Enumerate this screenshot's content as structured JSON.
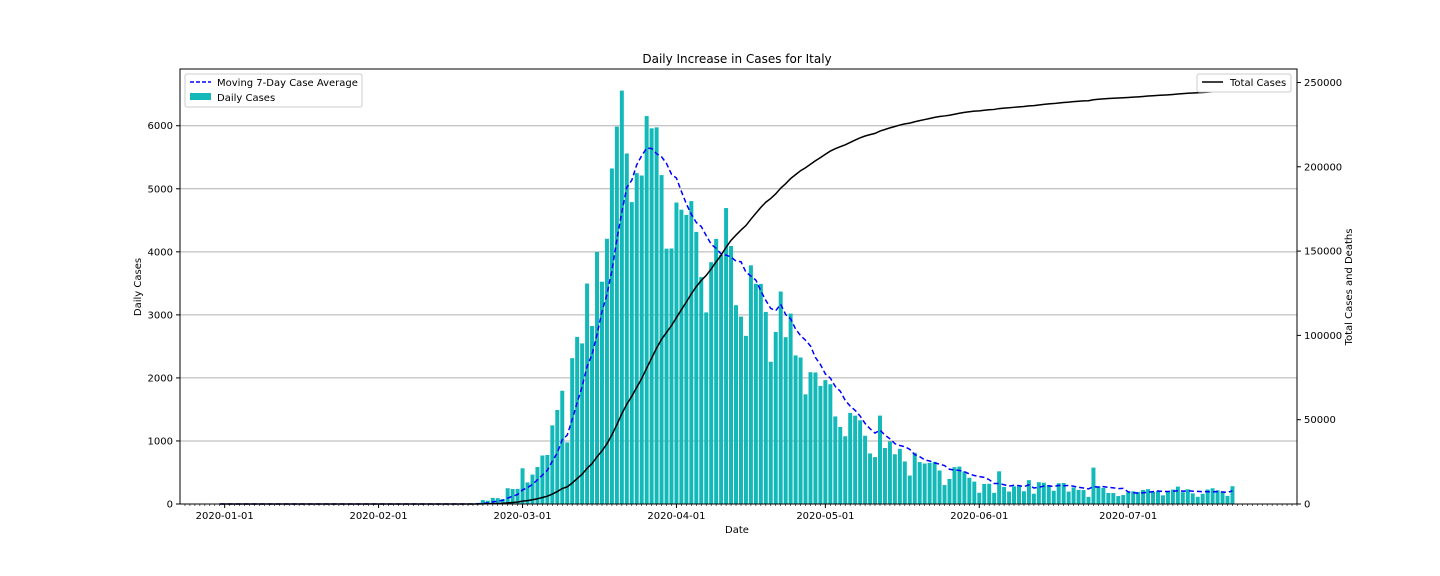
{
  "chart_data": {
    "type": "bar",
    "title": "Daily Increase in Cases for Italy",
    "xlabel": "Date",
    "ylabel": "Daily Cases",
    "y2label": "Total Cases and Deaths",
    "ylim": [
      0,
      6900
    ],
    "y2lim": [
      0,
      258000
    ],
    "yticks": [
      0,
      1000,
      2000,
      3000,
      4000,
      5000,
      6000
    ],
    "y2ticks": [
      0,
      50000,
      100000,
      150000,
      200000,
      250000
    ],
    "y2tick_labels": [
      "0",
      "50000",
      "100000",
      "150000",
      "200000",
      "250000"
    ],
    "x_range": [
      "2019-12-23",
      "2020-08-04"
    ],
    "date_start": "2019-12-31",
    "xtick_labels": [
      "2020-01-01",
      "2020-02-01",
      "2020-03-01",
      "2020-04-01",
      "2020-05-01",
      "2020-06-01",
      "2020-07-01"
    ],
    "grid": "horizontal",
    "legend_left": [
      "Moving 7-Day Case Average",
      "Daily Cases"
    ],
    "legend_right": [
      "Total Cases"
    ],
    "colors": {
      "bars": "#17becf",
      "bar_fill": "#13b8b8",
      "average": "#0000ff",
      "total": "#000000",
      "grid": "#b0b0b0"
    },
    "daily_cases": [
      0,
      0,
      0,
      0,
      0,
      0,
      0,
      0,
      0,
      0,
      0,
      0,
      0,
      0,
      0,
      0,
      0,
      0,
      0,
      0,
      0,
      0,
      0,
      0,
      0,
      0,
      0,
      0,
      0,
      0,
      0,
      3,
      0,
      0,
      0,
      0,
      0,
      0,
      0,
      0,
      0,
      0,
      0,
      0,
      0,
      0,
      0,
      0,
      0,
      0,
      0,
      0,
      0,
      0,
      0,
      0,
      0,
      0,
      0,
      0,
      0,
      0,
      0,
      0,
      0,
      0,
      0,
      0,
      0,
      0,
      0,
      0,
      0,
      0,
      0,
      0,
      0,
      0,
      0,
      0,
      0,
      0,
      0,
      0,
      0,
      0,
      0,
      0,
      0,
      0,
      0,
      0,
      0,
      0,
      0,
      0,
      0,
      0,
      0,
      0,
      0,
      0,
      0,
      0,
      0,
      0,
      0,
      0,
      0,
      0,
      0,
      0,
      0,
      0,
      0,
      0,
      0,
      0,
      0,
      0,
      0,
      0,
      0,
      0,
      0,
      0,
      0,
      0,
      0,
      0,
      0,
      0,
      0,
      0,
      0,
      0,
      0,
      0,
      0,
      0,
      0,
      0,
      0,
      0,
      0,
      0,
      0,
      0,
      0,
      0,
      0,
      0,
      0,
      0,
      0,
      0,
      0,
      0,
      0,
      0,
      0,
      0,
      0,
      0,
      0,
      0,
      0,
      0,
      0,
      0,
      0,
      0,
      0,
      0,
      0,
      0,
      0,
      0,
      0,
      0,
      0,
      0,
      0,
      0,
      0,
      0,
      0,
      0,
      0,
      0,
      0,
      0,
      0,
      0,
      0,
      0,
      0,
      0,
      0,
      0,
      0,
      0,
      0,
      0,
      0
    ],
    "daily_cases_from_2020_02_21": [
      17,
      62,
      53,
      97,
      93,
      78,
      250,
      238,
      240,
      566,
      342,
      466,
      587,
      769,
      778,
      1247,
      1492,
      1797,
      977,
      2313,
      2651,
      2547,
      3497,
      2823,
      4000,
      3526,
      4207,
      5322,
      5986,
      6557,
      5560,
      4789,
      5249,
      5210,
      6153,
      5959,
      5974,
      5217,
      4050,
      4053,
      4782,
      4668,
      4585,
      4805,
      4316,
      3599,
      3039,
      3836,
      4204,
      3951,
      4694,
      4092,
      3153,
      2972,
      2667,
      3786,
      3493,
      3491,
      3047,
      2256,
      2729,
      3370,
      2646,
      3021,
      2357,
      2324,
      1739,
      2091,
      2086,
      1872,
      1965,
      1900,
      1389,
      1221,
      1075,
      1444,
      1401,
      1327,
      1083,
      802,
      744,
      1402,
      888,
      992,
      789,
      875,
      675,
      451,
      813,
      665,
      642,
      652,
      669,
      531,
      300,
      397,
      584,
      593,
      516,
      416,
      355,
      178,
      318,
      321,
      177,
      518,
      270,
      197,
      280,
      283,
      202,
      379,
      163,
      346,
      338,
      301,
      210,
      329,
      333,
      197,
      262,
      224,
      221,
      113,
      577,
      282,
      255,
      175,
      174,
      126,
      142,
      187,
      201,
      192,
      223,
      235,
      192,
      208,
      138,
      193,
      229,
      276,
      188,
      234,
      169,
      114,
      162,
      230,
      249,
      218,
      190,
      129,
      282
    ]
  }
}
